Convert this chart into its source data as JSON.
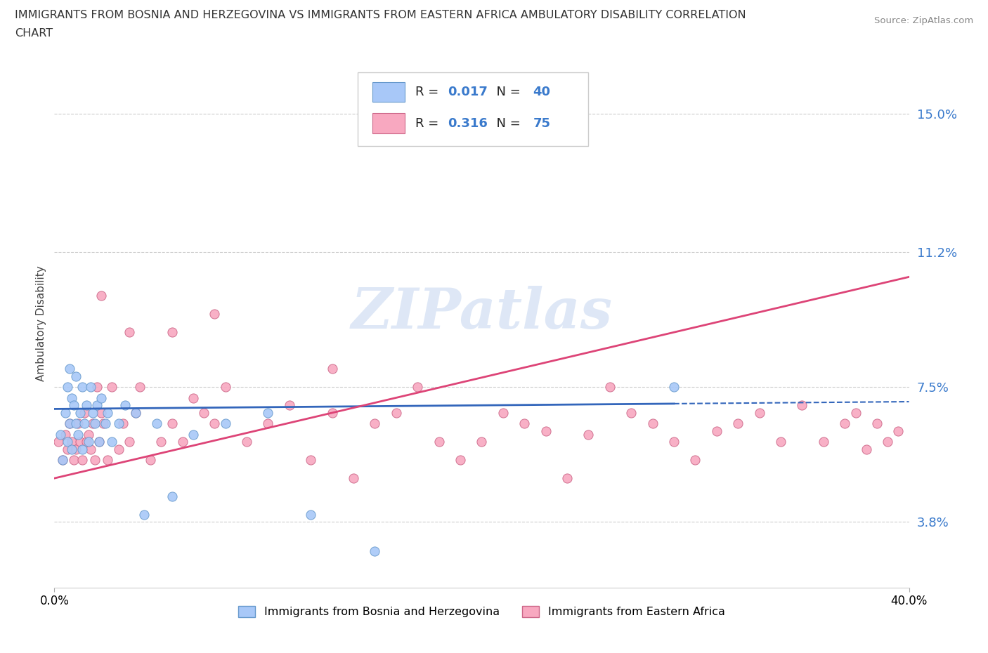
{
  "title_line1": "IMMIGRANTS FROM BOSNIA AND HERZEGOVINA VS IMMIGRANTS FROM EASTERN AFRICA AMBULATORY DISABILITY CORRELATION",
  "title_line2": "CHART",
  "source": "Source: ZipAtlas.com",
  "ylabel": "Ambulatory Disability",
  "yticks": [
    0.038,
    0.075,
    0.112,
    0.15
  ],
  "ytick_labels": [
    "3.8%",
    "7.5%",
    "11.2%",
    "15.0%"
  ],
  "xlim": [
    0.0,
    0.4
  ],
  "ylim": [
    0.02,
    0.165
  ],
  "xtick_labels": [
    "0.0%",
    "40.0%"
  ],
  "watermark": "ZIPatlas",
  "series1_label": "Immigrants from Bosnia and Herzegovina",
  "series2_label": "Immigrants from Eastern Africa",
  "series1_R": "0.017",
  "series1_N": "40",
  "series2_R": "0.316",
  "series2_N": "75",
  "series1_color": "#a8c8f8",
  "series2_color": "#f8a8c0",
  "series1_edge": "#6699cc",
  "series2_edge": "#cc6688",
  "trendline1_color": "#3366bb",
  "trendline2_color": "#dd4477",
  "gridline_color": "#cccccc",
  "series1_x": [
    0.003,
    0.004,
    0.005,
    0.006,
    0.006,
    0.007,
    0.007,
    0.008,
    0.008,
    0.009,
    0.01,
    0.01,
    0.011,
    0.012,
    0.013,
    0.013,
    0.014,
    0.015,
    0.016,
    0.017,
    0.018,
    0.019,
    0.02,
    0.021,
    0.022,
    0.024,
    0.025,
    0.027,
    0.03,
    0.033,
    0.038,
    0.042,
    0.048,
    0.055,
    0.065,
    0.08,
    0.1,
    0.12,
    0.15,
    0.29
  ],
  "series1_y": [
    0.062,
    0.055,
    0.068,
    0.075,
    0.06,
    0.08,
    0.065,
    0.072,
    0.058,
    0.07,
    0.065,
    0.078,
    0.062,
    0.068,
    0.058,
    0.075,
    0.065,
    0.07,
    0.06,
    0.075,
    0.068,
    0.065,
    0.07,
    0.06,
    0.072,
    0.065,
    0.068,
    0.06,
    0.065,
    0.07,
    0.068,
    0.04,
    0.065,
    0.045,
    0.062,
    0.065,
    0.068,
    0.04,
    0.03,
    0.075
  ],
  "series2_x": [
    0.002,
    0.004,
    0.005,
    0.006,
    0.007,
    0.008,
    0.009,
    0.01,
    0.011,
    0.012,
    0.013,
    0.014,
    0.015,
    0.016,
    0.017,
    0.018,
    0.019,
    0.02,
    0.021,
    0.022,
    0.023,
    0.025,
    0.027,
    0.03,
    0.032,
    0.035,
    0.038,
    0.04,
    0.045,
    0.05,
    0.055,
    0.06,
    0.065,
    0.07,
    0.075,
    0.08,
    0.09,
    0.1,
    0.11,
    0.12,
    0.13,
    0.14,
    0.15,
    0.16,
    0.17,
    0.18,
    0.19,
    0.2,
    0.21,
    0.22,
    0.23,
    0.24,
    0.25,
    0.26,
    0.27,
    0.28,
    0.29,
    0.3,
    0.31,
    0.32,
    0.33,
    0.34,
    0.35,
    0.36,
    0.37,
    0.375,
    0.38,
    0.385,
    0.39,
    0.395,
    0.022,
    0.035,
    0.055,
    0.075,
    0.13
  ],
  "series2_y": [
    0.06,
    0.055,
    0.062,
    0.058,
    0.065,
    0.06,
    0.055,
    0.058,
    0.065,
    0.06,
    0.055,
    0.068,
    0.06,
    0.062,
    0.058,
    0.065,
    0.055,
    0.075,
    0.06,
    0.068,
    0.065,
    0.055,
    0.075,
    0.058,
    0.065,
    0.06,
    0.068,
    0.075,
    0.055,
    0.06,
    0.065,
    0.06,
    0.072,
    0.068,
    0.065,
    0.075,
    0.06,
    0.065,
    0.07,
    0.055,
    0.068,
    0.05,
    0.065,
    0.068,
    0.075,
    0.06,
    0.055,
    0.06,
    0.068,
    0.065,
    0.063,
    0.05,
    0.062,
    0.075,
    0.068,
    0.065,
    0.06,
    0.055,
    0.063,
    0.065,
    0.068,
    0.06,
    0.07,
    0.06,
    0.065,
    0.068,
    0.058,
    0.065,
    0.06,
    0.063,
    0.1,
    0.09,
    0.09,
    0.095,
    0.08
  ]
}
